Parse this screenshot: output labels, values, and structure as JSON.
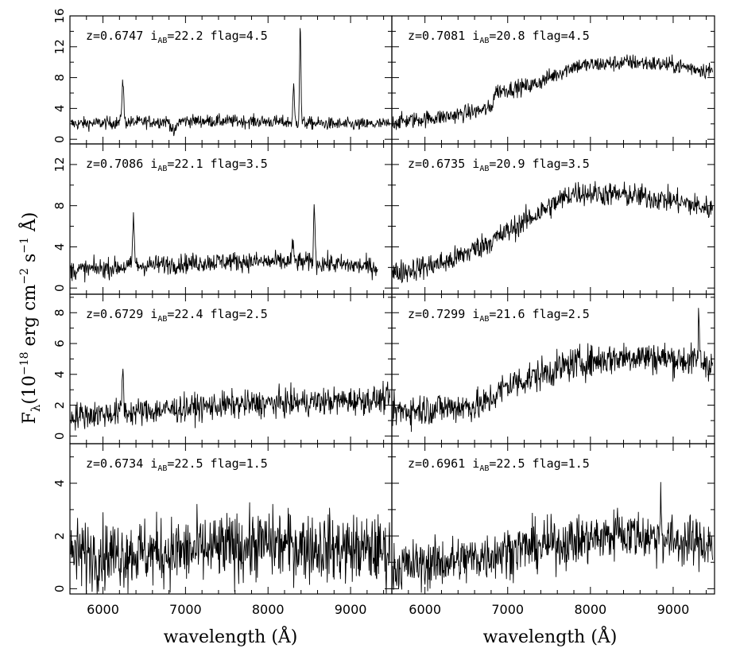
{
  "figure": {
    "ylabel_prefix": "F",
    "ylabel_sub": "λ",
    "ylabel_main": "(10",
    "ylabel_exp1": "−18",
    "ylabel_mid1": " erg cm",
    "ylabel_exp2": "−2",
    "ylabel_mid2": " s",
    "ylabel_exp3": "−1",
    "ylabel_tail": " Å)",
    "xlabel_left": "wavelength (Å)",
    "xlabel_right": "wavelength (Å)",
    "x_ticks": [
      "6000",
      "7000",
      "8000",
      "9000"
    ]
  },
  "chart_data": [
    {
      "type": "line",
      "col": 0,
      "row": 0,
      "xlim": [
        5600,
        9500
      ],
      "ylim": [
        -0.6,
        16
      ],
      "yticks": [
        0,
        4,
        8,
        12,
        16
      ],
      "label": {
        "z": "z=0.6747",
        "i": "i",
        "sub": "AB",
        "val": "=22.2",
        "flag": "flag=4.5"
      },
      "spectrum": {
        "continuum": [
          [
            5600,
            2.0
          ],
          [
            7000,
            2.4
          ],
          [
            8000,
            2.3
          ],
          [
            9000,
            1.9
          ],
          [
            9500,
            2.0
          ]
        ],
        "noise": 0.7,
        "lines": [
          [
            6240,
            7.6,
            25
          ],
          [
            6860,
            0.8,
            60
          ],
          [
            8310,
            6.8,
            20
          ],
          [
            8390,
            15.0,
            18
          ]
        ]
      }
    },
    {
      "type": "line",
      "col": 1,
      "row": 0,
      "xlim": [
        5600,
        9500
      ],
      "ylim": [
        -0.6,
        16
      ],
      "yticks": [
        0,
        4,
        8,
        12,
        16
      ],
      "label": {
        "z": "z=0.7081",
        "i": "i",
        "sub": "AB",
        "val": "=20.8",
        "flag": "flag=4.5"
      },
      "spectrum": {
        "continuum": [
          [
            5600,
            2.2
          ],
          [
            6300,
            3.0
          ],
          [
            6800,
            4.0
          ],
          [
            6850,
            6.2
          ],
          [
            7300,
            7.0
          ],
          [
            7800,
            9.5
          ],
          [
            8500,
            10.0
          ],
          [
            9000,
            9.6
          ],
          [
            9500,
            8.8
          ]
        ],
        "noise": 0.9,
        "lines": []
      }
    },
    {
      "type": "line",
      "col": 0,
      "row": 1,
      "xlim": [
        5600,
        9500
      ],
      "ylim": [
        -0.6,
        14
      ],
      "yticks": [
        0,
        4,
        8,
        12
      ],
      "label": {
        "z": "z=0.7086",
        "i": "i",
        "sub": "AB",
        "val": "=22.1",
        "flag": "flag=3.5"
      },
      "spectrum": {
        "continuum": [
          [
            5600,
            1.7
          ],
          [
            6500,
            2.2
          ],
          [
            7500,
            2.6
          ],
          [
            8500,
            2.5
          ],
          [
            9350,
            2.0
          ]
        ],
        "noise": 0.8,
        "lines": [
          [
            6370,
            7.0,
            22
          ],
          [
            8560,
            8.4,
            18
          ],
          [
            8300,
            4.0,
            30
          ]
        ]
      }
    },
    {
      "type": "line",
      "col": 1,
      "row": 1,
      "xlim": [
        5600,
        9500
      ],
      "ylim": [
        -0.6,
        14
      ],
      "yticks": [
        0,
        4,
        8,
        12
      ],
      "label": {
        "z": "z=0.6735",
        "i": "i",
        "sub": "AB",
        "val": "=20.9",
        "flag": "flag=3.5"
      },
      "spectrum": {
        "continuum": [
          [
            5600,
            1.4
          ],
          [
            6300,
            2.6
          ],
          [
            6900,
            5.0
          ],
          [
            7400,
            7.4
          ],
          [
            7800,
            9.3
          ],
          [
            8500,
            9.0
          ],
          [
            9000,
            8.5
          ],
          [
            9500,
            7.6
          ]
        ],
        "noise": 1.0,
        "lines": []
      }
    },
    {
      "type": "line",
      "col": 0,
      "row": 2,
      "xlim": [
        5600,
        9500
      ],
      "ylim": [
        -0.5,
        9.2
      ],
      "yticks": [
        0,
        2,
        4,
        6,
        8
      ],
      "label": {
        "z": "z=0.6729",
        "i": "i",
        "sub": "AB",
        "val": "=22.4",
        "flag": "flag=2.5"
      },
      "spectrum": {
        "continuum": [
          [
            5600,
            1.3
          ],
          [
            6500,
            1.6
          ],
          [
            7500,
            2.0
          ],
          [
            8500,
            2.2
          ],
          [
            9500,
            2.4
          ]
        ],
        "noise": 0.75,
        "lines": [
          [
            6240,
            4.3,
            22
          ]
        ]
      }
    },
    {
      "type": "line",
      "col": 1,
      "row": 2,
      "xlim": [
        5600,
        9500
      ],
      "ylim": [
        -0.5,
        9.2
      ],
      "yticks": [
        0,
        2,
        4,
        6,
        8
      ],
      "label": {
        "z": "z=0.7299",
        "i": "i",
        "sub": "AB",
        "val": "=21.6",
        "flag": "flag=2.5"
      },
      "spectrum": {
        "continuum": [
          [
            5600,
            1.6
          ],
          [
            6700,
            2.0
          ],
          [
            7000,
            3.3
          ],
          [
            7800,
            4.7
          ],
          [
            8500,
            5.2
          ],
          [
            9000,
            5.0
          ],
          [
            9500,
            4.7
          ]
        ],
        "noise": 0.9,
        "lines": [
          [
            9310,
            8.1,
            15
          ]
        ]
      }
    },
    {
      "type": "line",
      "col": 0,
      "row": 3,
      "xlim": [
        5600,
        9500
      ],
      "ylim": [
        -0.2,
        5.5
      ],
      "yticks": [
        0,
        2,
        4
      ],
      "label": {
        "z": "z=0.6734",
        "i": "i",
        "sub": "AB",
        "val": "=22.5",
        "flag": "flag=1.5"
      },
      "spectrum": {
        "continuum": [
          [
            5600,
            1.3
          ],
          [
            7000,
            1.4
          ],
          [
            8000,
            1.7
          ],
          [
            9000,
            1.5
          ],
          [
            9500,
            1.4
          ]
        ],
        "noise": 1.1,
        "lines": []
      }
    },
    {
      "type": "line",
      "col": 1,
      "row": 3,
      "xlim": [
        5600,
        9500
      ],
      "ylim": [
        -0.2,
        5.5
      ],
      "yticks": [
        0,
        2,
        4
      ],
      "label": {
        "z": "z=0.6961",
        "i": "i",
        "sub": "AB",
        "val": "=22.5",
        "flag": "flag=1.5"
      },
      "spectrum": {
        "continuum": [
          [
            5600,
            0.8
          ],
          [
            6500,
            1.1
          ],
          [
            7100,
            1.5
          ],
          [
            7800,
            1.8
          ],
          [
            8500,
            2.1
          ],
          [
            9000,
            1.8
          ],
          [
            9500,
            1.7
          ]
        ],
        "noise": 0.8,
        "lines": [
          [
            8330,
            3.4,
            15
          ],
          [
            8850,
            3.9,
            15
          ]
        ]
      }
    }
  ]
}
